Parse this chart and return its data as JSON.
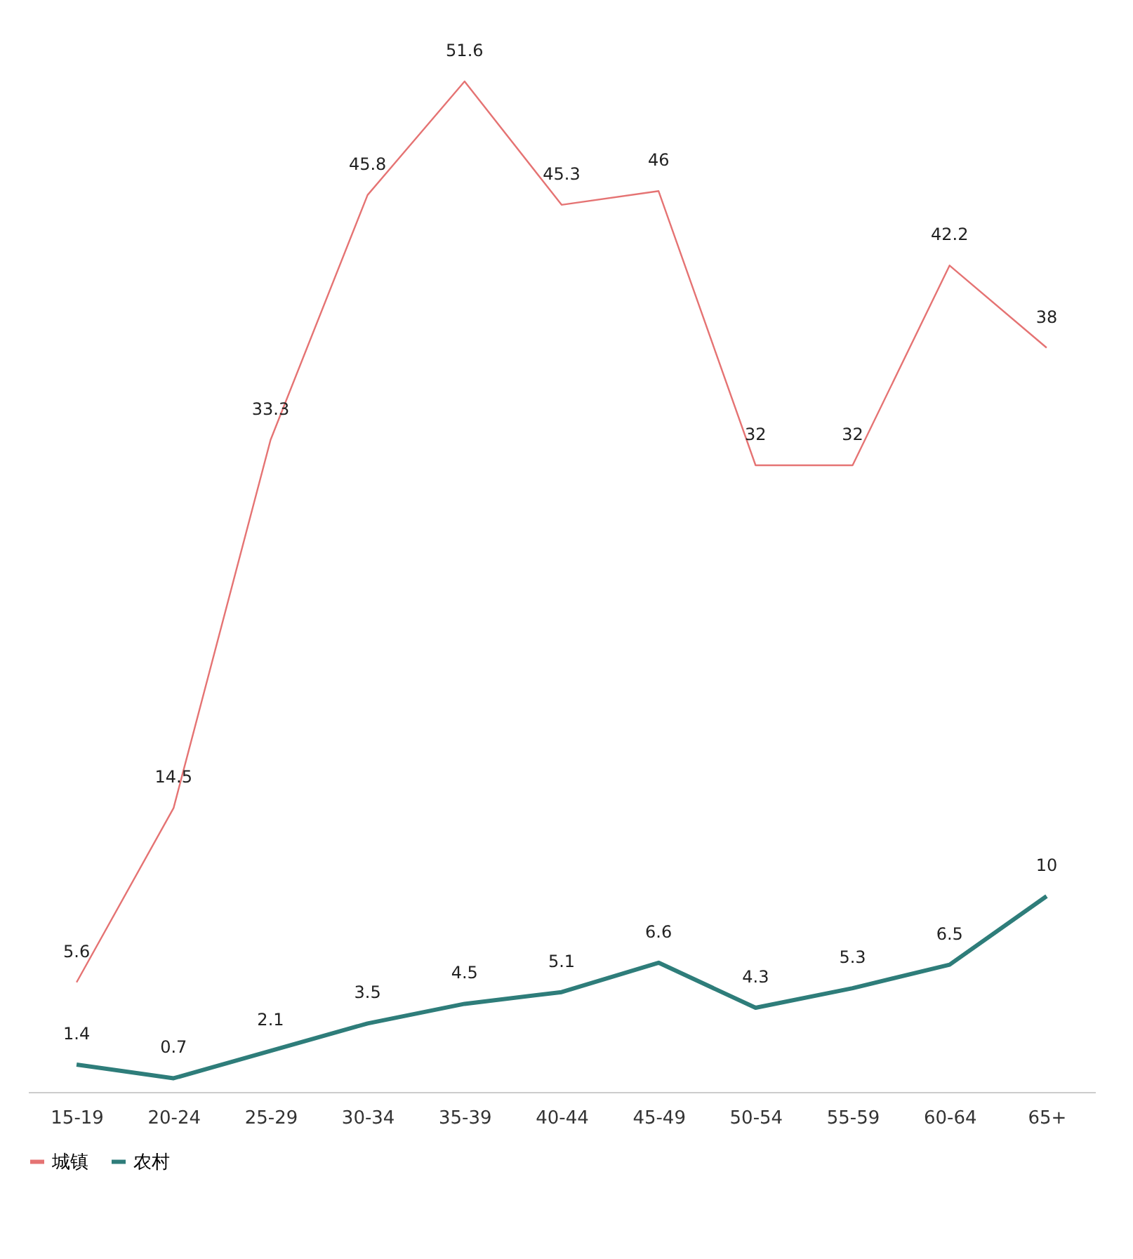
{
  "chart_data": {
    "type": "line",
    "categories": [
      "15-19",
      "20-24",
      "25-29",
      "30-34",
      "35-39",
      "40-44",
      "45-49",
      "50-54",
      "55-59",
      "60-64",
      "65+"
    ],
    "series": [
      {
        "name": "城镇",
        "color": "#e57373",
        "values": [
          5.6,
          14.5,
          33.3,
          45.8,
          51.6,
          45.3,
          46,
          32,
          32,
          42.2,
          38
        ]
      },
      {
        "name": "农村",
        "color": "#2e7d7a",
        "values": [
          1.4,
          0.7,
          2.1,
          3.5,
          4.5,
          5.1,
          6.6,
          4.3,
          5.3,
          6.5,
          10.0
        ]
      }
    ],
    "data_labels": true,
    "legend": "bottom",
    "grid": false,
    "marker": "none",
    "line_style": "solid",
    "tick_labels": "x"
  }
}
